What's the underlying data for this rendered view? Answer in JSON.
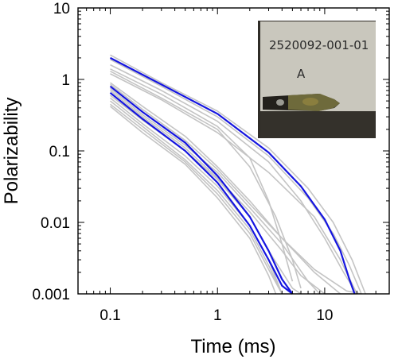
{
  "chart_data": {
    "type": "line",
    "title": "",
    "xlabel": "Time (ms)",
    "ylabel": "Polarizability",
    "xscale": "log",
    "yscale": "log",
    "xlim": [
      0.05,
      40
    ],
    "ylim": [
      0.001,
      10
    ],
    "x_ticks": [
      {
        "value": 0.1,
        "label": "0.1"
      },
      {
        "value": 1,
        "label": "1"
      },
      {
        "value": 10,
        "label": "10"
      }
    ],
    "y_ticks": [
      {
        "value": 0.001,
        "label": "0.001"
      },
      {
        "value": 0.01,
        "label": "0.01"
      },
      {
        "value": 0.1,
        "label": "0.1"
      },
      {
        "value": 1,
        "label": "1"
      },
      {
        "value": 10,
        "label": "10"
      }
    ],
    "grid": false,
    "legend": "none",
    "colors": {
      "highlight": "#1515e0",
      "background_curves": "#c4c4c4"
    },
    "series": [
      {
        "group": "upper",
        "highlight": true,
        "points": [
          [
            0.1,
            2.0
          ],
          [
            0.3,
            0.85
          ],
          [
            1,
            0.33
          ],
          [
            3,
            0.095
          ],
          [
            6,
            0.032
          ],
          [
            10,
            0.011
          ],
          [
            14,
            0.004
          ],
          [
            17,
            0.0016
          ],
          [
            19,
            0.0008
          ]
        ]
      },
      {
        "group": "lower",
        "highlight": true,
        "points": [
          [
            0.1,
            0.8
          ],
          [
            0.2,
            0.35
          ],
          [
            0.5,
            0.13
          ],
          [
            1,
            0.045
          ],
          [
            2,
            0.012
          ],
          [
            3,
            0.004
          ],
          [
            4,
            0.0016
          ],
          [
            5,
            0.0008
          ]
        ]
      },
      {
        "group": "lower",
        "highlight": true,
        "points": [
          [
            0.1,
            0.65
          ],
          [
            0.2,
            0.28
          ],
          [
            0.5,
            0.1
          ],
          [
            1,
            0.036
          ],
          [
            2,
            0.009
          ],
          [
            3,
            0.003
          ],
          [
            4,
            0.0013
          ],
          [
            5,
            0.0009
          ]
        ]
      },
      {
        "group": "upper",
        "highlight": false,
        "points": [
          [
            0.1,
            2.2
          ],
          [
            0.3,
            0.9
          ],
          [
            1,
            0.36
          ],
          [
            3,
            0.11
          ],
          [
            7,
            0.03
          ],
          [
            12,
            0.01
          ],
          [
            18,
            0.003
          ],
          [
            24,
            0.001
          ]
        ]
      },
      {
        "group": "upper",
        "highlight": false,
        "points": [
          [
            0.1,
            1.9
          ],
          [
            0.3,
            0.8
          ],
          [
            1,
            0.3
          ],
          [
            3,
            0.085
          ],
          [
            7,
            0.022
          ],
          [
            12,
            0.007
          ],
          [
            17,
            0.0025
          ],
          [
            22,
            0.0009
          ]
        ]
      },
      {
        "group": "upper",
        "highlight": false,
        "points": [
          [
            0.1,
            1.6
          ],
          [
            0.3,
            0.7
          ],
          [
            1,
            0.26
          ],
          [
            3,
            0.07
          ],
          [
            6,
            0.02
          ],
          [
            10,
            0.006
          ],
          [
            15,
            0.002
          ],
          [
            20,
            0.0009
          ]
        ]
      },
      {
        "group": "upper",
        "highlight": false,
        "points": [
          [
            0.1,
            1.4
          ],
          [
            0.3,
            0.62
          ],
          [
            1,
            0.22
          ],
          [
            2,
            0.08
          ],
          [
            3,
            0.02
          ],
          [
            4,
            0.005
          ],
          [
            5,
            0.0015
          ]
        ]
      },
      {
        "group": "upper",
        "highlight": false,
        "points": [
          [
            0.1,
            1.3
          ],
          [
            0.3,
            0.55
          ],
          [
            1,
            0.2
          ],
          [
            2,
            0.06
          ],
          [
            3.5,
            0.012
          ],
          [
            5,
            0.003
          ],
          [
            6,
            0.0012
          ]
        ]
      },
      {
        "group": "upper",
        "highlight": false,
        "points": [
          [
            0.1,
            1.2
          ],
          [
            0.3,
            0.52
          ],
          [
            1,
            0.18
          ],
          [
            3,
            0.05
          ],
          [
            8,
            0.012
          ],
          [
            14,
            0.003
          ],
          [
            20,
            0.001
          ]
        ]
      },
      {
        "group": "lower",
        "highlight": false,
        "points": [
          [
            0.1,
            0.9
          ],
          [
            0.2,
            0.42
          ],
          [
            0.5,
            0.16
          ],
          [
            1,
            0.06
          ],
          [
            2,
            0.02
          ],
          [
            4,
            0.006
          ],
          [
            8,
            0.002
          ],
          [
            14,
            0.0008
          ]
        ]
      },
      {
        "group": "lower",
        "highlight": false,
        "points": [
          [
            0.1,
            0.75
          ],
          [
            0.2,
            0.32
          ],
          [
            0.5,
            0.12
          ],
          [
            1,
            0.05
          ],
          [
            2,
            0.016
          ],
          [
            4,
            0.005
          ],
          [
            7,
            0.0015
          ],
          [
            9,
            0.0008
          ]
        ]
      },
      {
        "group": "lower",
        "highlight": false,
        "points": [
          [
            0.1,
            0.6
          ],
          [
            0.2,
            0.27
          ],
          [
            0.5,
            0.1
          ],
          [
            1,
            0.04
          ],
          [
            2,
            0.012
          ],
          [
            3,
            0.004
          ],
          [
            5,
            0.0012
          ],
          [
            6,
            0.0008
          ]
        ]
      },
      {
        "group": "lower",
        "highlight": false,
        "points": [
          [
            0.1,
            0.55
          ],
          [
            0.2,
            0.24
          ],
          [
            0.5,
            0.085
          ],
          [
            1,
            0.032
          ],
          [
            2,
            0.009
          ],
          [
            3,
            0.003
          ],
          [
            4,
            0.001
          ]
        ]
      },
      {
        "group": "lower",
        "highlight": false,
        "points": [
          [
            0.1,
            0.5
          ],
          [
            0.2,
            0.22
          ],
          [
            0.5,
            0.075
          ],
          [
            1,
            0.028
          ],
          [
            2,
            0.008
          ],
          [
            3,
            0.0025
          ],
          [
            4,
            0.0009
          ]
        ]
      },
      {
        "group": "lower",
        "highlight": false,
        "points": [
          [
            0.1,
            0.45
          ],
          [
            0.2,
            0.2
          ],
          [
            0.5,
            0.07
          ],
          [
            1,
            0.025
          ],
          [
            2,
            0.007
          ],
          [
            3,
            0.0022
          ],
          [
            4,
            0.0008
          ]
        ]
      },
      {
        "group": "lower",
        "highlight": false,
        "points": [
          [
            0.1,
            0.42
          ],
          [
            0.2,
            0.18
          ],
          [
            0.5,
            0.065
          ],
          [
            1,
            0.022
          ],
          [
            2,
            0.006
          ],
          [
            3,
            0.0018
          ],
          [
            3.5,
            0.0009
          ]
        ]
      },
      {
        "group": "lower",
        "highlight": false,
        "points": [
          [
            0.1,
            0.7
          ],
          [
            0.2,
            0.3
          ],
          [
            0.5,
            0.11
          ],
          [
            1,
            0.042
          ],
          [
            2,
            0.014
          ],
          [
            4,
            0.004
          ],
          [
            6,
            0.0018
          ],
          [
            10,
            0.001
          ],
          [
            20,
            0.0008
          ]
        ]
      },
      {
        "group": "lower",
        "highlight": false,
        "points": [
          [
            0.1,
            0.85
          ],
          [
            0.2,
            0.38
          ],
          [
            0.5,
            0.14
          ],
          [
            1,
            0.055
          ],
          [
            2,
            0.018
          ],
          [
            4,
            0.006
          ],
          [
            8,
            0.0022
          ],
          [
            16,
            0.0011
          ],
          [
            22,
            0.0008
          ]
        ]
      }
    ]
  },
  "inset_photo": {
    "label_line1": "2520092-001-01",
    "label_line2": "A",
    "colors": {
      "card": "#c8c6bc",
      "background": "#33302a",
      "core": "#6f6a3a"
    }
  }
}
